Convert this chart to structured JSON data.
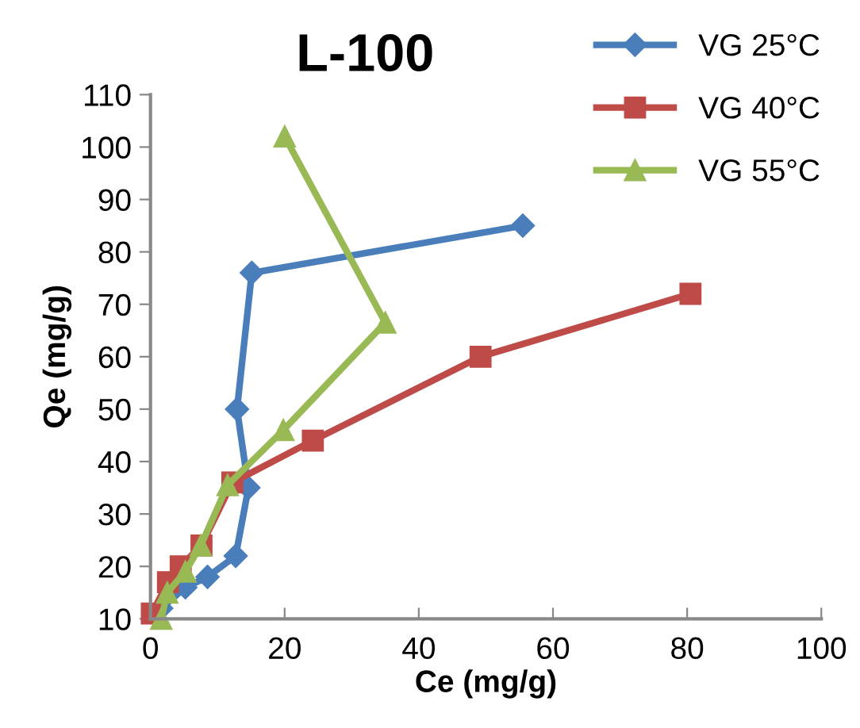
{
  "chart_data": {
    "type": "line",
    "title": "L-100",
    "xlabel": "Ce (mg/g)",
    "ylabel": "Qe (mg/g)",
    "xlim": [
      0,
      100
    ],
    "xticks": [
      0,
      20,
      40,
      60,
      80,
      100
    ],
    "ylim": [
      10,
      110
    ],
    "yticks": [
      10,
      20,
      30,
      40,
      50,
      60,
      70,
      80,
      90,
      100,
      110
    ],
    "grid": false,
    "legend": "top right",
    "series": [
      {
        "name": "VG 25°C",
        "color": "#4a7ebb",
        "marker": "diamond",
        "x": [
          1.6,
          5.2,
          8.5,
          12.7,
          14.6,
          12.9,
          15.1,
          55.5
        ],
        "values": [
          12,
          16,
          18,
          22,
          35,
          50,
          76,
          85
        ]
      },
      {
        "name": "VG 40°C",
        "color": "#be4b48",
        "marker": "square",
        "x": [
          0.2,
          2.6,
          4.5,
          7.6,
          12.2,
          24.2,
          49.2,
          80.5
        ],
        "values": [
          11,
          17,
          20,
          24,
          36,
          44,
          60,
          72
        ]
      },
      {
        "name": "VG 55°C",
        "color": "#98b954",
        "marker": "triangle",
        "x": [
          1.6,
          2.5,
          5.2,
          7.5,
          11.5,
          19.8,
          35,
          20
        ],
        "values": [
          10,
          15,
          19,
          24,
          35.5,
          46,
          66.5,
          102
        ]
      }
    ]
  }
}
